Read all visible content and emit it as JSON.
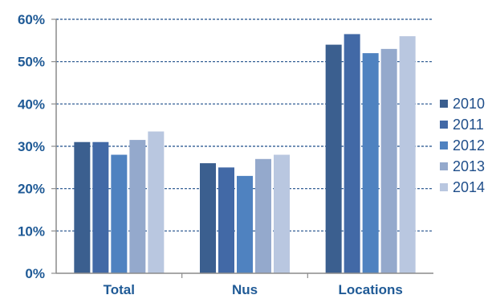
{
  "chart_data": {
    "type": "bar",
    "title": "",
    "xlabel": "",
    "ylabel": "",
    "categories": [
      "Total",
      "Nus",
      "Locations"
    ],
    "series": [
      {
        "name": "2010",
        "values": [
          31,
          26,
          54
        ],
        "color": "#3b5f8f"
      },
      {
        "name": "2011",
        "values": [
          31,
          25,
          56.5
        ],
        "color": "#4269a6"
      },
      {
        "name": "2012",
        "values": [
          28,
          23,
          52
        ],
        "color": "#4f82c0"
      },
      {
        "name": "2013",
        "values": [
          31.5,
          27,
          53
        ],
        "color": "#94a9cc"
      },
      {
        "name": "2014",
        "values": [
          33.5,
          28,
          56
        ],
        "color": "#b9c7e0"
      }
    ],
    "ylim": [
      0,
      60
    ],
    "yticks": [
      "0%",
      "10%",
      "20%",
      "30%",
      "40%",
      "50%",
      "60%"
    ],
    "ytick_values": [
      0,
      10,
      20,
      30,
      40,
      50,
      60
    ],
    "grid": true,
    "legend_position": "right"
  }
}
